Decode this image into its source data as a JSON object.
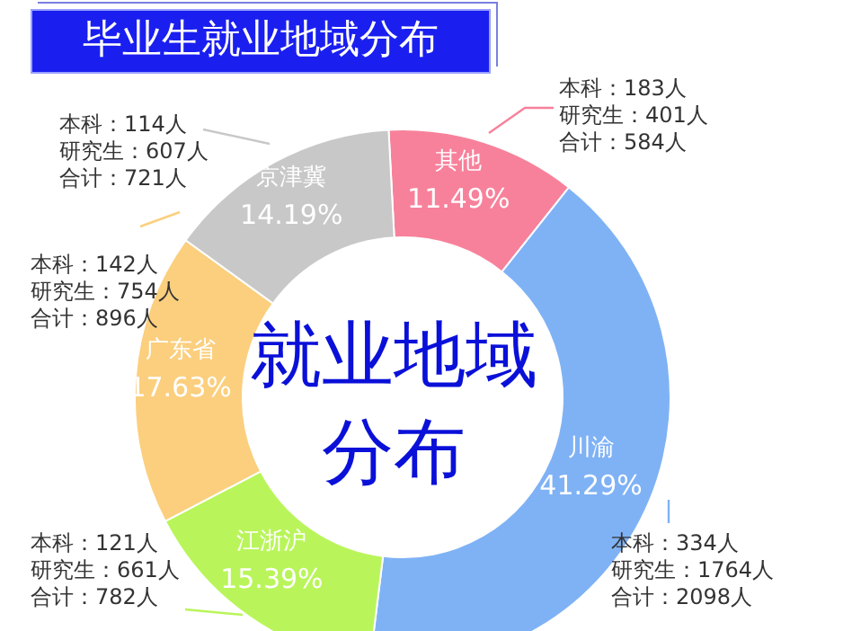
{
  "chart_data": {
    "type": "donut",
    "title": "毕业生就业地域分布",
    "categories": [
      "其他",
      "川渝",
      "江浙沪",
      "广东省",
      "京津冀"
    ],
    "values": [
      11.49,
      41.29,
      15.39,
      17.63,
      14.19
    ],
    "value_labels": [
      "11.49%",
      "41.29%",
      "15.39%",
      "17.63%",
      "14.19%"
    ],
    "colors": [
      "#f7819b",
      "#7fb2f5",
      "#b9f55a",
      "#fbcf7e",
      "#c8c8c8"
    ],
    "annotations": [
      "本科：183人",
      "研究生：401人",
      "合计：584人",
      "本科：334人",
      "研究生：1764人",
      "合计：2098人",
      "本科：121人",
      "研究生：661人",
      "合计：782人",
      "本科：142人",
      "研究生：754人",
      "合计：896人",
      "本科：114人",
      "研究生：607人",
      "合计：721人",
      "就业地域分布"
    ]
  }
}
